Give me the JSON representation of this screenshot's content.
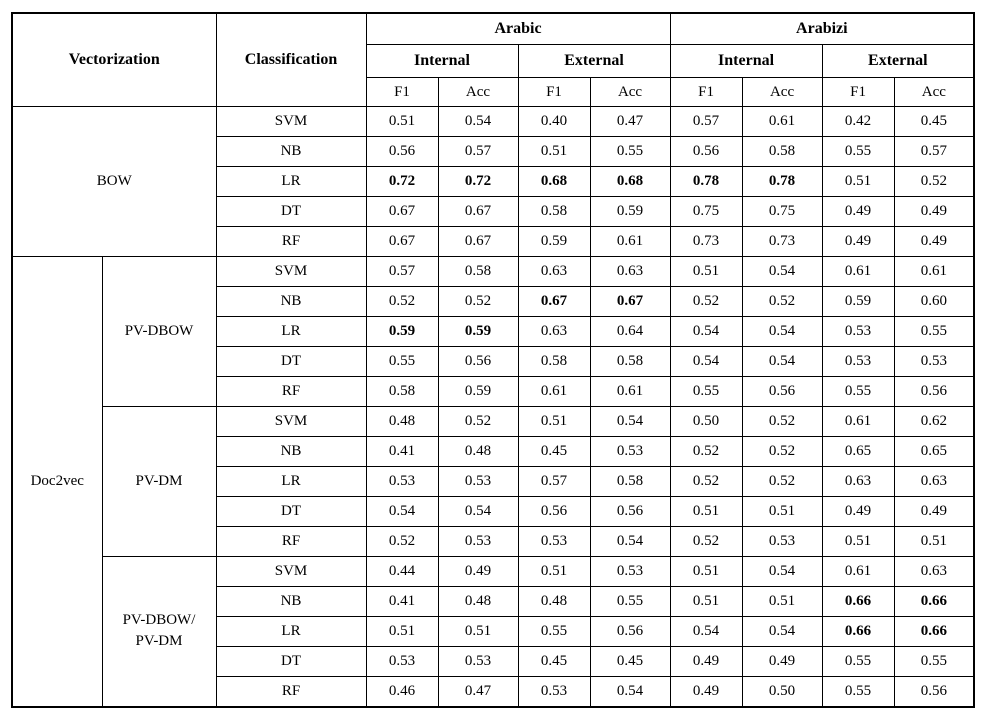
{
  "table": {
    "header": {
      "vectorization": "Vectorization",
      "classification": "Classification",
      "groups": [
        "Arabic",
        "Arabizi"
      ],
      "subgroups": [
        "Internal",
        "External"
      ],
      "metrics": [
        "F1",
        "Acc"
      ]
    },
    "body": [
      {
        "group": "BOW",
        "group_colspan": 2,
        "subgroups": [
          {
            "label": null,
            "rows": [
              {
                "classifier": "SVM",
                "values": [
                  "0.51",
                  "0.54",
                  "0.40",
                  "0.47",
                  "0.57",
                  "0.61",
                  "0.42",
                  "0.45"
                ],
                "bold": [
                  0,
                  0,
                  0,
                  0,
                  0,
                  0,
                  0,
                  0
                ]
              },
              {
                "classifier": "NB",
                "values": [
                  "0.56",
                  "0.57",
                  "0.51",
                  "0.55",
                  "0.56",
                  "0.58",
                  "0.55",
                  "0.57"
                ],
                "bold": [
                  0,
                  0,
                  0,
                  0,
                  0,
                  0,
                  0,
                  0
                ]
              },
              {
                "classifier": "LR",
                "values": [
                  "0.72",
                  "0.72",
                  "0.68",
                  "0.68",
                  "0.78",
                  "0.78",
                  "0.51",
                  "0.52"
                ],
                "bold": [
                  1,
                  1,
                  1,
                  1,
                  1,
                  1,
                  0,
                  0
                ]
              },
              {
                "classifier": "DT",
                "values": [
                  "0.67",
                  "0.67",
                  "0.58",
                  "0.59",
                  "0.75",
                  "0.75",
                  "0.49",
                  "0.49"
                ],
                "bold": [
                  0,
                  0,
                  0,
                  0,
                  0,
                  0,
                  0,
                  0
                ]
              },
              {
                "classifier": "RF",
                "values": [
                  "0.67",
                  "0.67",
                  "0.59",
                  "0.61",
                  "0.73",
                  "0.73",
                  "0.49",
                  "0.49"
                ],
                "bold": [
                  0,
                  0,
                  0,
                  0,
                  0,
                  0,
                  0,
                  0
                ]
              }
            ]
          }
        ]
      },
      {
        "group": "Doc2vec",
        "group_colspan": 1,
        "subgroups": [
          {
            "label": "PV-DBOW",
            "rows": [
              {
                "classifier": "SVM",
                "values": [
                  "0.57",
                  "0.58",
                  "0.63",
                  "0.63",
                  "0.51",
                  "0.54",
                  "0.61",
                  "0.61"
                ],
                "bold": [
                  0,
                  0,
                  0,
                  0,
                  0,
                  0,
                  0,
                  0
                ]
              },
              {
                "classifier": "NB",
                "values": [
                  "0.52",
                  "0.52",
                  "0.67",
                  "0.67",
                  "0.52",
                  "0.52",
                  "0.59",
                  "0.60"
                ],
                "bold": [
                  0,
                  0,
                  1,
                  1,
                  0,
                  0,
                  0,
                  0
                ]
              },
              {
                "classifier": "LR",
                "values": [
                  "0.59",
                  "0.59",
                  "0.63",
                  "0.64",
                  "0.54",
                  "0.54",
                  "0.53",
                  "0.55"
                ],
                "bold": [
                  1,
                  1,
                  0,
                  0,
                  0,
                  0,
                  0,
                  0
                ]
              },
              {
                "classifier": "DT",
                "values": [
                  "0.55",
                  "0.56",
                  "0.58",
                  "0.58",
                  "0.54",
                  "0.54",
                  "0.53",
                  "0.53"
                ],
                "bold": [
                  0,
                  0,
                  0,
                  0,
                  0,
                  0,
                  0,
                  0
                ]
              },
              {
                "classifier": "RF",
                "values": [
                  "0.58",
                  "0.59",
                  "0.61",
                  "0.61",
                  "0.55",
                  "0.56",
                  "0.55",
                  "0.56"
                ],
                "bold": [
                  0,
                  0,
                  0,
                  0,
                  0,
                  0,
                  0,
                  0
                ]
              }
            ]
          },
          {
            "label": "PV-DM",
            "rows": [
              {
                "classifier": "SVM",
                "values": [
                  "0.48",
                  "0.52",
                  "0.51",
                  "0.54",
                  "0.50",
                  "0.52",
                  "0.61",
                  "0.62"
                ],
                "bold": [
                  0,
                  0,
                  0,
                  0,
                  0,
                  0,
                  0,
                  0
                ]
              },
              {
                "classifier": "NB",
                "values": [
                  "0.41",
                  "0.48",
                  "0.45",
                  "0.53",
                  "0.52",
                  "0.52",
                  "0.65",
                  "0.65"
                ],
                "bold": [
                  0,
                  0,
                  0,
                  0,
                  0,
                  0,
                  0,
                  0
                ]
              },
              {
                "classifier": "LR",
                "values": [
                  "0.53",
                  "0.53",
                  "0.57",
                  "0.58",
                  "0.52",
                  "0.52",
                  "0.63",
                  "0.63"
                ],
                "bold": [
                  0,
                  0,
                  0,
                  0,
                  0,
                  0,
                  0,
                  0
                ]
              },
              {
                "classifier": "DT",
                "values": [
                  "0.54",
                  "0.54",
                  "0.56",
                  "0.56",
                  "0.51",
                  "0.51",
                  "0.49",
                  "0.49"
                ],
                "bold": [
                  0,
                  0,
                  0,
                  0,
                  0,
                  0,
                  0,
                  0
                ]
              },
              {
                "classifier": "RF",
                "values": [
                  "0.52",
                  "0.53",
                  "0.53",
                  "0.54",
                  "0.52",
                  "0.53",
                  "0.51",
                  "0.51"
                ],
                "bold": [
                  0,
                  0,
                  0,
                  0,
                  0,
                  0,
                  0,
                  0
                ]
              }
            ]
          },
          {
            "label": "PV-DBOW/\nPV-DM",
            "rows": [
              {
                "classifier": "SVM",
                "values": [
                  "0.44",
                  "0.49",
                  "0.51",
                  "0.53",
                  "0.51",
                  "0.54",
                  "0.61",
                  "0.63"
                ],
                "bold": [
                  0,
                  0,
                  0,
                  0,
                  0,
                  0,
                  0,
                  0
                ]
              },
              {
                "classifier": "NB",
                "values": [
                  "0.41",
                  "0.48",
                  "0.48",
                  "0.55",
                  "0.51",
                  "0.51",
                  "0.66",
                  "0.66"
                ],
                "bold": [
                  0,
                  0,
                  0,
                  0,
                  0,
                  0,
                  1,
                  1
                ]
              },
              {
                "classifier": "LR",
                "values": [
                  "0.51",
                  "0.51",
                  "0.55",
                  "0.56",
                  "0.54",
                  "0.54",
                  "0.66",
                  "0.66"
                ],
                "bold": [
                  0,
                  0,
                  0,
                  0,
                  0,
                  0,
                  1,
                  1
                ]
              },
              {
                "classifier": "DT",
                "values": [
                  "0.53",
                  "0.53",
                  "0.45",
                  "0.45",
                  "0.49",
                  "0.49",
                  "0.55",
                  "0.55"
                ],
                "bold": [
                  0,
                  0,
                  0,
                  0,
                  0,
                  0,
                  0,
                  0
                ]
              },
              {
                "classifier": "RF",
                "values": [
                  "0.46",
                  "0.47",
                  "0.53",
                  "0.54",
                  "0.49",
                  "0.50",
                  "0.55",
                  "0.56"
                ],
                "bold": [
                  0,
                  0,
                  0,
                  0,
                  0,
                  0,
                  0,
                  0
                ]
              }
            ]
          }
        ]
      }
    ]
  }
}
